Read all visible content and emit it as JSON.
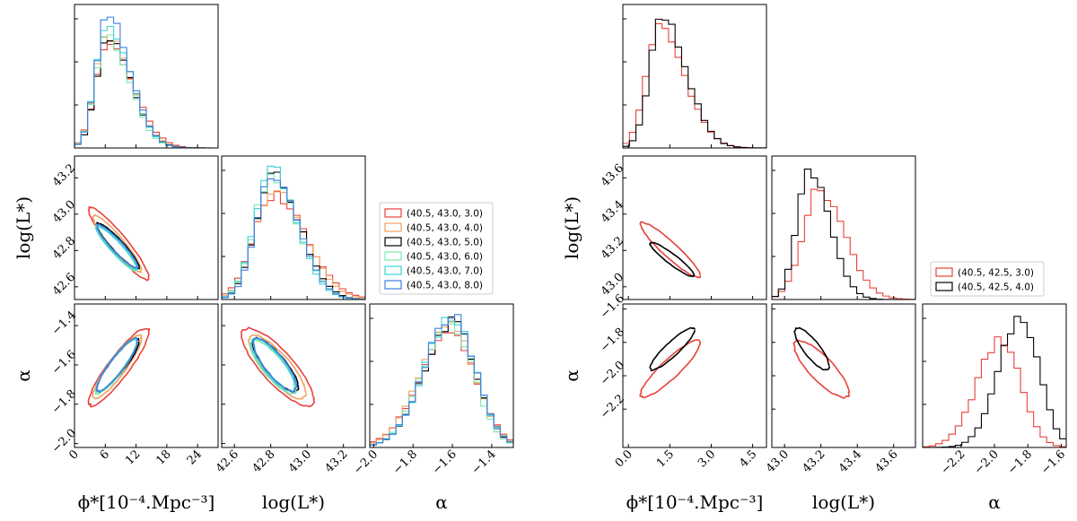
{
  "chart_data": [
    {
      "type": "corner",
      "params": [
        "phi_star",
        "logL_star",
        "alpha"
      ],
      "axis_labels": {
        "phi_star": "ϕ*[10⁻⁴.Mpc⁻³]",
        "logL_star": "log(L*)",
        "alpha": "α"
      },
      "ranges": {
        "phi_star": [
          0,
          28
        ],
        "logL_star": [
          42.53,
          43.32
        ],
        "alpha": [
          -2.02,
          -1.29
        ]
      },
      "ticks": {
        "phi_star": [
          0,
          6,
          12,
          18,
          24
        ],
        "logL_star": [
          42.6,
          42.8,
          43.0,
          43.2
        ],
        "alpha": [
          -2.0,
          -1.8,
          -1.6,
          -1.4
        ]
      },
      "tick_labels": {
        "phi_star": [
          "0",
          "6",
          "12",
          "18",
          "24"
        ],
        "logL_star": [
          "42.6",
          "42.8",
          "43.0",
          "43.2"
        ],
        "alpha": [
          "−2.0",
          "−1.8",
          "−1.6",
          "−1.4"
        ]
      },
      "legend": {
        "placement": "right of middle row"
      },
      "series": [
        {
          "name": "(40.5, 43.0, 3.0)",
          "color": "#e8413b",
          "phi_mode": 6.5,
          "phi_sigma": 3.9,
          "L_mode": 42.82,
          "L_sigma": 0.145,
          "a_mode": -1.61,
          "a_sigma": 0.145,
          "peak_scale": [
            0.8,
            0.8,
            0.86
          ],
          "contour_scale": 1.3
        },
        {
          "name": "(40.5, 43.0, 4.0)",
          "color": "#f2a15f",
          "phi_mode": 6.3,
          "phi_sigma": 3.7,
          "L_mode": 42.82,
          "L_sigma": 0.135,
          "a_mode": -1.61,
          "a_sigma": 0.14,
          "peak_scale": [
            0.85,
            0.86,
            0.92
          ],
          "contour_scale": 1.1
        },
        {
          "name": "(40.5, 43.0, 5.0)",
          "color": "#000000",
          "phi_mode": 6.5,
          "phi_sigma": 3.6,
          "L_mode": 42.81,
          "L_sigma": 0.12,
          "a_mode": -1.6,
          "a_sigma": 0.13,
          "peak_scale": [
            0.84,
            0.96,
            0.96
          ],
          "contour_scale": 1.0
        },
        {
          "name": "(40.5, 43.0, 6.0)",
          "color": "#7fe6b0",
          "phi_mode": 6.2,
          "phi_sigma": 3.5,
          "L_mode": 42.8,
          "L_sigma": 0.12,
          "a_mode": -1.61,
          "a_sigma": 0.13,
          "peak_scale": [
            0.88,
            0.93,
            0.95
          ],
          "contour_scale": 1.0
        },
        {
          "name": "(40.5, 43.0, 7.0)",
          "color": "#39d5d5",
          "phi_mode": 6.3,
          "phi_sigma": 3.5,
          "L_mode": 42.8,
          "L_sigma": 0.115,
          "a_mode": -1.6,
          "a_sigma": 0.13,
          "peak_scale": [
            0.95,
            1.0,
            0.99
          ],
          "contour_scale": 0.98
        },
        {
          "name": "(40.5, 43.0, 8.0)",
          "color": "#3f7fe0",
          "phi_mode": 6.4,
          "phi_sigma": 3.5,
          "L_mode": 42.81,
          "L_sigma": 0.115,
          "a_mode": -1.6,
          "a_sigma": 0.13,
          "peak_scale": [
            1.0,
            0.97,
            1.0
          ],
          "contour_scale": 0.98
        }
      ]
    },
    {
      "type": "corner",
      "params": [
        "phi_star",
        "logL_star",
        "alpha"
      ],
      "axis_labels": {
        "phi_star": "ϕ*[10⁻⁴.Mpc⁻³]",
        "logL_star": "log(L*)",
        "alpha": "α"
      },
      "ranges": {
        "phi_star": [
          -0.2,
          5.0
        ],
        "logL_star": [
          42.93,
          43.72
        ],
        "alpha": [
          -2.43,
          -1.57
        ]
      },
      "ticks": {
        "phi_star": [
          0.0,
          1.5,
          3.0,
          4.5
        ],
        "logL_star": [
          43.0,
          43.2,
          43.4,
          43.6
        ],
        "alpha": [
          -2.2,
          -2.0,
          -1.8,
          -1.6
        ]
      },
      "tick_labels": {
        "phi_star": [
          "0.0",
          "1.5",
          "3.0",
          "4.5"
        ],
        "logL_star": [
          "43.0",
          "43.2",
          "43.4",
          "43.6"
        ],
        "alpha": [
          "−2.2",
          "−2.0",
          "−1.8",
          "−1.6"
        ]
      },
      "legend": {
        "placement": "right of middle row"
      },
      "series": [
        {
          "name": "(40.5, 42.5, 3.0)",
          "color": "#e8413b",
          "phi_mode": 1.1,
          "phi_sigma": 0.75,
          "L_mode": 43.19,
          "L_sigma": 0.115,
          "a_mode": -1.96,
          "a_sigma": 0.13,
          "peak_scale": [
            0.92,
            0.84,
            0.82
          ],
          "contour_scale": 1.25
        },
        {
          "name": "(40.5, 42.5, 4.0)",
          "color": "#000000",
          "phi_mode": 1.2,
          "phi_sigma": 0.7,
          "L_mode": 43.14,
          "L_sigma": 0.09,
          "a_mode": -1.84,
          "a_sigma": 0.12,
          "peak_scale": [
            1.0,
            1.0,
            1.0
          ],
          "contour_scale": 1.0
        }
      ]
    }
  ]
}
